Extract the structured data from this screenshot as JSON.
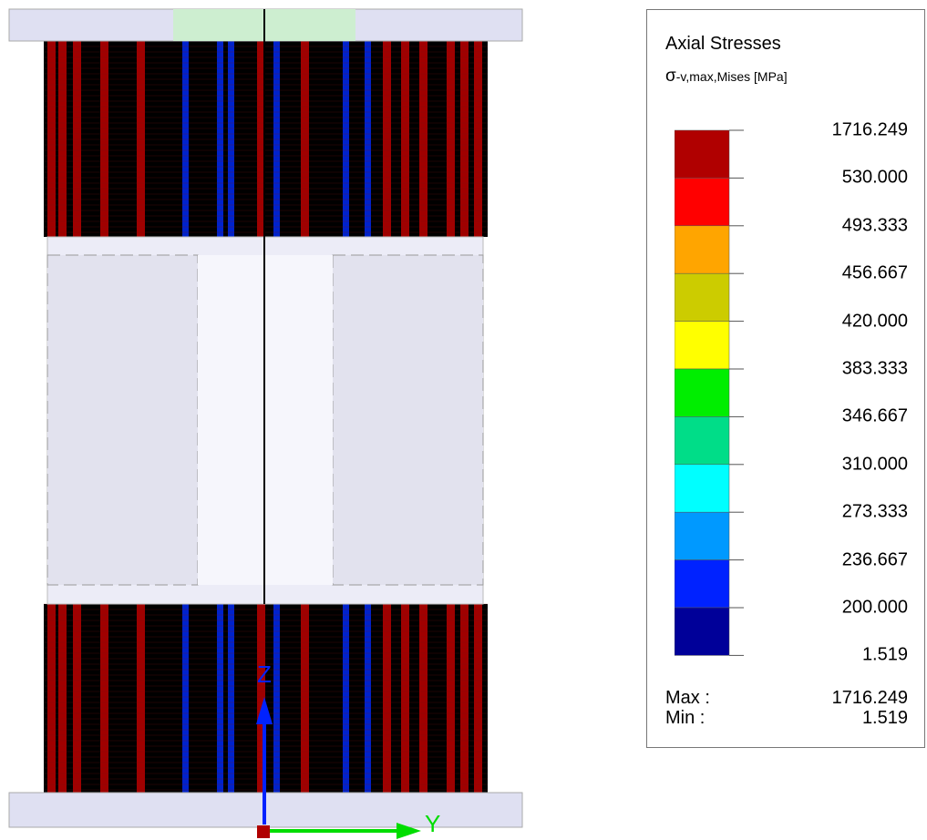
{
  "legend": {
    "title": "Axial Stresses",
    "symbol": "σ",
    "subtitle": "-v,max,Mises [MPa]",
    "levels": [
      "1716.249",
      "530.000",
      "493.333",
      "456.667",
      "420.000",
      "383.333",
      "346.667",
      "310.000",
      "273.333",
      "236.667",
      "200.000",
      "1.519"
    ],
    "colors": [
      "#b00000",
      "#ff0000",
      "#ffa500",
      "#cccc00",
      "#ffff00",
      "#00ee00",
      "#00dd88",
      "#00ffff",
      "#0099ff",
      "#0022ff",
      "#000099"
    ],
    "max": {
      "label": "Max :",
      "value": "1716.249"
    },
    "min": {
      "label": "Min :",
      "value": "1.519"
    }
  },
  "axes": {
    "z": "Z",
    "y": "Y"
  }
}
